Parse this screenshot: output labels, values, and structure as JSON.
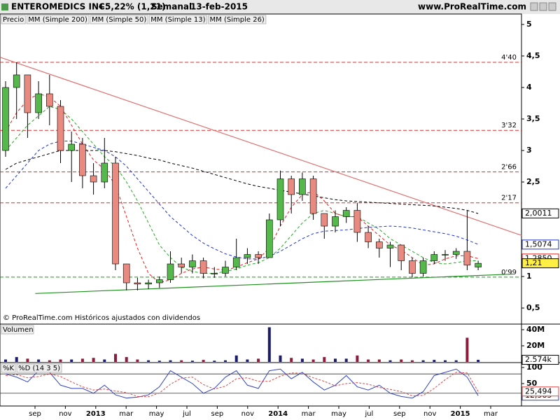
{
  "header": {
    "title": "ENTEROMEDICS INC.",
    "change": "+5,22% (1,21)",
    "period": "Semanal",
    "date": "13-feb-2015",
    "site": "www.ProRealTime.com"
  },
  "copyright": "© ProRealTime.com Históricos ajustados con dividendos",
  "x_labels": [
    "sep",
    "nov",
    "2013",
    "mar",
    "may",
    "jul",
    "sep",
    "nov",
    "2014",
    "mar",
    "may",
    "jul",
    "sep",
    "nov",
    "2015",
    "mar"
  ],
  "chart_data": [
    {
      "type": "candlestick",
      "name": "Precio",
      "up_color": "#55b84a",
      "down_color": "#e98a80",
      "open": [
        3.0,
        4.0,
        4.2,
        3.6,
        3.9,
        3.7,
        3.0,
        3.1,
        2.6,
        2.5,
        2.8,
        1.2,
        0.9,
        0.88,
        0.9,
        0.95,
        1.2,
        1.15,
        1.25,
        1.05,
        1.05,
        1.15,
        1.3,
        1.35,
        1.3,
        1.9,
        2.55,
        2.3,
        2.55,
        2.0,
        1.8,
        1.95,
        2.05,
        1.7,
        1.55,
        1.45,
        1.5,
        1.25,
        1.05,
        1.25,
        1.35,
        1.35,
        1.4,
        1.15
      ],
      "high": [
        4.1,
        4.4,
        4.2,
        4.1,
        4.2,
        3.8,
        3.3,
        3.2,
        2.8,
        3.2,
        2.9,
        1.2,
        0.98,
        0.95,
        1.0,
        1.4,
        1.3,
        1.35,
        1.3,
        1.15,
        1.25,
        1.6,
        1.45,
        1.4,
        2.0,
        2.68,
        2.6,
        2.65,
        2.6,
        2.0,
        2.05,
        2.1,
        2.17,
        1.8,
        1.6,
        1.55,
        1.5,
        1.3,
        1.3,
        1.4,
        1.42,
        1.45,
        2.05,
        1.25
      ],
      "low": [
        2.9,
        3.5,
        3.2,
        3.5,
        3.4,
        2.8,
        2.5,
        2.4,
        2.3,
        2.4,
        1.1,
        0.78,
        0.78,
        0.8,
        0.82,
        0.9,
        1.05,
        1.05,
        0.97,
        0.98,
        1.0,
        1.1,
        1.2,
        1.2,
        1.3,
        1.8,
        2.0,
        2.2,
        1.9,
        1.6,
        1.7,
        1.85,
        1.55,
        1.45,
        1.3,
        1.15,
        1.1,
        0.99,
        1.0,
        1.2,
        1.25,
        1.28,
        1.1,
        1.1
      ],
      "close": [
        4.0,
        4.2,
        3.6,
        3.9,
        3.7,
        3.0,
        3.1,
        2.6,
        2.5,
        2.8,
        1.2,
        0.9,
        0.88,
        0.9,
        0.95,
        1.2,
        1.15,
        1.25,
        1.05,
        1.05,
        1.15,
        1.3,
        1.35,
        1.3,
        1.9,
        2.55,
        2.3,
        2.55,
        2.0,
        1.8,
        1.95,
        2.05,
        1.7,
        1.55,
        1.45,
        1.5,
        1.25,
        1.05,
        1.25,
        1.35,
        1.35,
        1.4,
        1.18,
        1.21
      ],
      "last_value": {
        "value": 1.21,
        "label": "1,21"
      },
      "series": [
        {
          "name": "MM (Simple 200)",
          "color": "#000000",
          "values": [
            2.7,
            2.8,
            2.85,
            2.9,
            2.95,
            3.0,
            3.0,
            3.0,
            3.0,
            3.0,
            2.98,
            2.95,
            2.92,
            2.88,
            2.85,
            2.8,
            2.76,
            2.72,
            2.67,
            2.62,
            2.57,
            2.52,
            2.47,
            2.43,
            2.4,
            2.37,
            2.34,
            2.31,
            2.28,
            2.25,
            2.22,
            2.2,
            2.19,
            2.18,
            2.17,
            2.16,
            2.15,
            2.14,
            2.13,
            2.12,
            2.1,
            2.08,
            2.05,
            2.0
          ],
          "last_value": {
            "value": 2.0011,
            "label": "2,0011"
          }
        },
        {
          "name": "MM (Simple 50)",
          "color": "#2233cc",
          "values": [
            2.4,
            2.6,
            2.8,
            3.0,
            3.1,
            3.15,
            3.15,
            3.1,
            3.05,
            3.0,
            2.9,
            2.75,
            2.55,
            2.35,
            2.15,
            1.95,
            1.8,
            1.65,
            1.53,
            1.44,
            1.36,
            1.31,
            1.28,
            1.28,
            1.32,
            1.4,
            1.5,
            1.6,
            1.68,
            1.72,
            1.73,
            1.74,
            1.76,
            1.78,
            1.79,
            1.8,
            1.79,
            1.77,
            1.74,
            1.71,
            1.68,
            1.64,
            1.58,
            1.51
          ],
          "last_value": {
            "value": 1.5074,
            "label": "1,5074"
          }
        },
        {
          "name": "MM (Simple 13)",
          "color": "#e02020",
          "values": [
            3.3,
            3.6,
            3.8,
            3.9,
            3.85,
            3.7,
            3.4,
            3.1,
            2.85,
            2.7,
            2.45,
            1.95,
            1.45,
            1.05,
            0.9,
            0.95,
            1.05,
            1.12,
            1.15,
            1.12,
            1.1,
            1.15,
            1.22,
            1.28,
            1.45,
            1.8,
            2.1,
            2.3,
            2.35,
            2.2,
            2.0,
            1.95,
            1.95,
            1.8,
            1.65,
            1.5,
            1.42,
            1.3,
            1.18,
            1.2,
            1.28,
            1.33,
            1.33,
            1.285
          ],
          "last_value": {
            "value": 1.285,
            "label": "1,2850"
          }
        },
        {
          "name": "MM (Simple 26)",
          "color": "#22aa22",
          "values": [
            3.0,
            3.2,
            3.4,
            3.55,
            3.7,
            3.65,
            3.5,
            3.3,
            3.1,
            2.9,
            2.75,
            2.5,
            2.2,
            1.85,
            1.5,
            1.3,
            1.15,
            1.08,
            1.05,
            1.05,
            1.08,
            1.12,
            1.18,
            1.22,
            1.3,
            1.45,
            1.65,
            1.85,
            2.0,
            2.05,
            2.0,
            1.95,
            1.95,
            1.85,
            1.75,
            1.6,
            1.5,
            1.4,
            1.3,
            1.22,
            1.2,
            1.22,
            1.25,
            1.25
          ]
        }
      ],
      "levels": [
        {
          "value": 4.4,
          "label": "4'40",
          "color": "#d03030"
        },
        {
          "value": 3.32,
          "label": "3'32",
          "color": "#d03030"
        },
        {
          "value": 2.66,
          "label": "2'66",
          "color": "#d03030"
        },
        {
          "value": 2.17,
          "label": "2'17",
          "color": "#d03030"
        },
        {
          "value": 0.99,
          "label": "0'99",
          "color": "#209020"
        }
      ],
      "trendlines": [
        {
          "color": "#e07070",
          "x": [
            -0.5,
            47
          ],
          "values": [
            4.48,
            1.65
          ]
        },
        {
          "color": "#209020",
          "x": [
            2.7,
            46.3
          ],
          "values": [
            0.73,
            1.04
          ]
        }
      ],
      "ylim": [
        0.256,
        5.144
      ],
      "yticks": [
        {
          "value": 0.5,
          "label": "0,5"
        },
        1,
        {
          "value": 2.5,
          "label": "2,5"
        },
        3,
        {
          "value": 3.5,
          "label": "3,5"
        },
        4,
        {
          "value": 4.5,
          "label": "4,5"
        },
        5
      ]
    },
    {
      "type": "bar",
      "title": "Volumen",
      "up_color": "#1c1c6a",
      "down_color": "#8b1c3c",
      "values": [
        3,
        6,
        4,
        3,
        2,
        3,
        3,
        4,
        5,
        3,
        10,
        6,
        3,
        2,
        1.5,
        2,
        2,
        1.5,
        2.5,
        1.5,
        2,
        8,
        3,
        4,
        43,
        8,
        5,
        4,
        3,
        6,
        4,
        4,
        8,
        3,
        3,
        2,
        3,
        2,
        2,
        2.5,
        2,
        2,
        30,
        2.574
      ],
      "last_value": {
        "value": 2.574,
        "label": "2.574k"
      },
      "ylim": [
        0,
        45.2
      ],
      "yticks": [
        {
          "value": 20,
          "label": "20M"
        },
        {
          "value": 40,
          "label": "40M"
        }
      ]
    },
    {
      "type": "stochastic",
      "series": [
        {
          "name": "%K",
          "color": "#3344bb",
          "values": [
            80,
            70,
            55,
            90,
            85,
            45,
            35,
            35,
            20,
            45,
            15,
            5,
            8,
            15,
            40,
            90,
            70,
            50,
            20,
            35,
            70,
            90,
            45,
            35,
            90,
            95,
            65,
            85,
            55,
            30,
            45,
            75,
            40,
            30,
            45,
            20,
            10,
            5,
            25,
            75,
            85,
            95,
            70,
            12.585
          ],
          "last_value": {
            "value": 12.585,
            "label": "12,585"
          }
        },
        {
          "name": "%D (14 3 5)",
          "color": "#e04848",
          "values": [
            75,
            78,
            68,
            72,
            80,
            72,
            55,
            40,
            30,
            33,
            27,
            22,
            10,
            9,
            21,
            48,
            67,
            70,
            47,
            33,
            42,
            65,
            68,
            57,
            57,
            73,
            83,
            82,
            68,
            57,
            43,
            50,
            53,
            48,
            38,
            32,
            25,
            12,
            13,
            35,
            62,
            85,
            83,
            25.494
          ],
          "last_value": {
            "value": 25.494,
            "label": "25,494"
          }
        }
      ],
      "levels": [
        20,
        80
      ],
      "ylim": [
        -19.6,
        113
      ],
      "yticks": [
        50,
        100
      ]
    }
  ]
}
